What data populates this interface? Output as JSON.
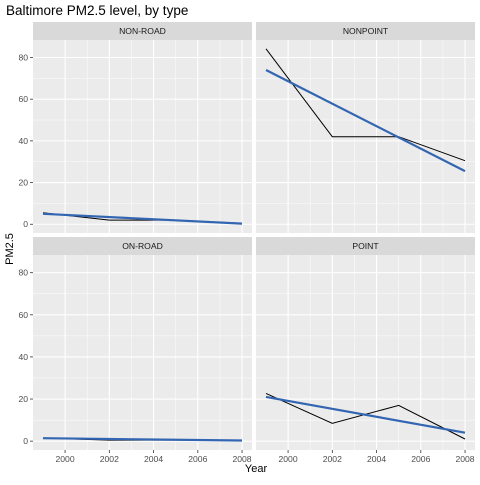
{
  "chart_data": {
    "type": "line",
    "title": "Baltimore PM2.5 level, by type",
    "xlabel": "Year",
    "ylabel": "PM2.5",
    "xlim": [
      1998.55,
      2008.45
    ],
    "ylim": [
      -4.2,
      88.4
    ],
    "x_ticks": [
      2000,
      2002,
      2004,
      2006,
      2008
    ],
    "y_ticks": [
      0,
      20,
      40,
      60,
      80
    ],
    "grid": true,
    "colors": {
      "panel_bg": "#EBEBEB",
      "strip_bg": "#D9D9D9",
      "grid_major": "#FFFFFF",
      "observed_line": "#000000",
      "trend_line": "#3366B2"
    },
    "panels": [
      {
        "name": "NON-ROAD",
        "observed": {
          "x": [
            1999,
            2002,
            2005,
            2008
          ],
          "y": [
            5.5,
            2.0,
            2.0,
            0.5
          ]
        },
        "trend": {
          "x": [
            1999,
            2008
          ],
          "y": [
            5.0,
            0.3
          ]
        }
      },
      {
        "name": "NONPOINT",
        "observed": {
          "x": [
            1999,
            2002,
            2005,
            2008
          ],
          "y": [
            84.2,
            42.0,
            42.0,
            30.5
          ]
        },
        "trend": {
          "x": [
            1999,
            2008
          ],
          "y": [
            74.0,
            25.5
          ]
        }
      },
      {
        "name": "ON-ROAD",
        "observed": {
          "x": [
            1999,
            2002,
            2005,
            2008
          ],
          "y": [
            1.5,
            0.5,
            0.5,
            0.3
          ]
        },
        "trend": {
          "x": [
            1999,
            2008
          ],
          "y": [
            1.4,
            0.3
          ]
        }
      },
      {
        "name": "POINT",
        "observed": {
          "x": [
            1999,
            2002,
            2005,
            2008
          ],
          "y": [
            22.7,
            8.5,
            17.0,
            1.0
          ]
        },
        "trend": {
          "x": [
            1999,
            2008
          ],
          "y": [
            21.0,
            4.0
          ]
        }
      }
    ]
  }
}
